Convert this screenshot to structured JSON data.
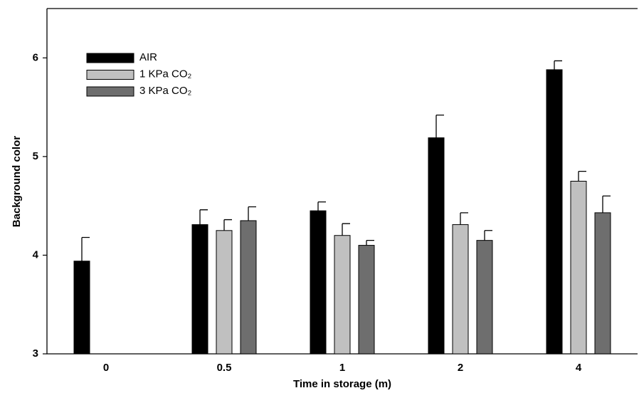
{
  "chart_data": {
    "type": "bar",
    "x_label": "Time in storage (m)",
    "y_label": "Background color",
    "categories": [
      "0",
      "0.5",
      "1",
      "2",
      "4"
    ],
    "series": [
      {
        "name": "AIR",
        "color": "#000000",
        "values": [
          3.94,
          4.31,
          4.45,
          5.19,
          5.88
        ],
        "errors": [
          0.24,
          0.15,
          0.09,
          0.23,
          0.09
        ]
      },
      {
        "name": "1 KPa CO₂",
        "color": "#c0c0c0",
        "values": [
          null,
          4.25,
          4.2,
          4.31,
          4.75
        ],
        "errors": [
          null,
          0.11,
          0.12,
          0.12,
          0.1
        ]
      },
      {
        "name": "3 KPa CO₂",
        "color": "#6e6e6e",
        "values": [
          null,
          4.35,
          4.1,
          4.15,
          4.43
        ],
        "errors": [
          null,
          0.14,
          0.05,
          0.1,
          0.17
        ]
      }
    ],
    "ylim": [
      3,
      6.5
    ],
    "yticks": [
      3,
      4,
      5,
      6
    ],
    "legend": "upper-left"
  }
}
